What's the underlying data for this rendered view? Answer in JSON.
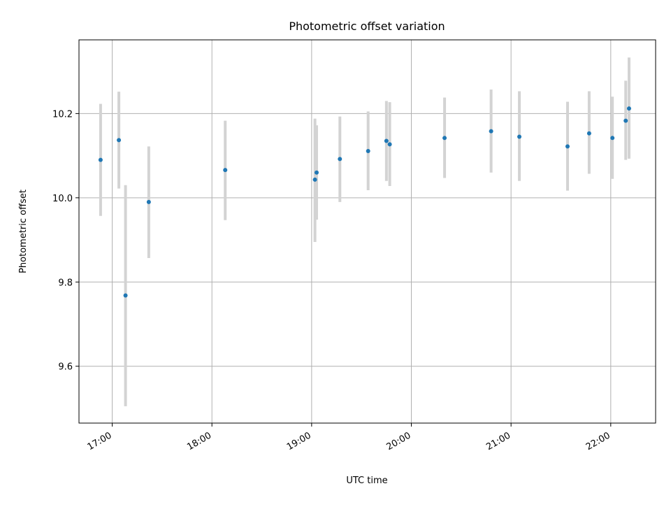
{
  "chart_data": {
    "type": "scatter",
    "title": "Photometric offset variation",
    "xlabel": "UTC time",
    "ylabel": "Photometric offset",
    "x_ticks": [
      "17:00",
      "18:00",
      "19:00",
      "20:00",
      "21:00",
      "22:00"
    ],
    "y_ticks": [
      "9.6",
      "9.8",
      "10.0",
      "10.2"
    ],
    "xlim": [
      "16:40",
      "22:27"
    ],
    "ylim": [
      9.465,
      10.375
    ],
    "grid": true,
    "colors": {
      "point": "#1f77b4",
      "errorbar": "#d3d3d3",
      "grid": "#b0b0b0"
    },
    "points": [
      {
        "x": "16:53",
        "y": 10.09,
        "yerr_low": 9.957,
        "yerr_high": 10.223
      },
      {
        "x": "17:04",
        "y": 10.137,
        "yerr_low": 10.022,
        "yerr_high": 10.252
      },
      {
        "x": "17:08",
        "y": 9.768,
        "yerr_low": 9.505,
        "yerr_high": 10.03
      },
      {
        "x": "17:22",
        "y": 9.99,
        "yerr_low": 9.857,
        "yerr_high": 10.122
      },
      {
        "x": "18:08",
        "y": 10.066,
        "yerr_low": 9.947,
        "yerr_high": 10.183
      },
      {
        "x": "19:02",
        "y": 10.043,
        "yerr_low": 9.895,
        "yerr_high": 10.188
      },
      {
        "x": "19:03",
        "y": 10.06,
        "yerr_low": 9.948,
        "yerr_high": 10.172
      },
      {
        "x": "19:17",
        "y": 10.092,
        "yerr_low": 9.99,
        "yerr_high": 10.193
      },
      {
        "x": "19:34",
        "y": 10.111,
        "yerr_low": 10.018,
        "yerr_high": 10.205
      },
      {
        "x": "19:45",
        "y": 10.135,
        "yerr_low": 10.04,
        "yerr_high": 10.23
      },
      {
        "x": "19:47",
        "y": 10.127,
        "yerr_low": 10.028,
        "yerr_high": 10.227
      },
      {
        "x": "20:20",
        "y": 10.142,
        "yerr_low": 10.047,
        "yerr_high": 10.238
      },
      {
        "x": "20:48",
        "y": 10.158,
        "yerr_low": 10.06,
        "yerr_high": 10.257
      },
      {
        "x": "21:05",
        "y": 10.145,
        "yerr_low": 10.04,
        "yerr_high": 10.253
      },
      {
        "x": "21:34",
        "y": 10.122,
        "yerr_low": 10.017,
        "yerr_high": 10.228
      },
      {
        "x": "21:47",
        "y": 10.153,
        "yerr_low": 10.057,
        "yerr_high": 10.253
      },
      {
        "x": "22:01",
        "y": 10.142,
        "yerr_low": 10.045,
        "yerr_high": 10.24
      },
      {
        "x": "22:09",
        "y": 10.183,
        "yerr_low": 10.09,
        "yerr_high": 10.278
      },
      {
        "x": "22:11",
        "y": 10.212,
        "yerr_low": 10.093,
        "yerr_high": 10.333
      }
    ]
  }
}
